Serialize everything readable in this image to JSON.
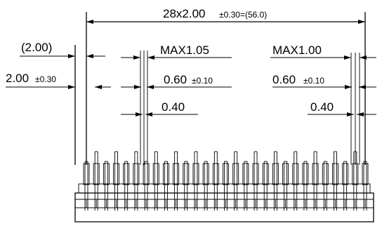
{
  "dimensions": {
    "overall": {
      "main": "28x2.00",
      "tol": "±0.30=(56.0)"
    },
    "ref_pitch": {
      "main": "(2.00)"
    },
    "pitch_tol": {
      "main": "2.00",
      "tol": "±0.30"
    },
    "max_left": {
      "main": "MAX1.05"
    },
    "max_right": {
      "main": "MAX1.00"
    },
    "width_left": {
      "main": "0.60",
      "tol": "±0.10"
    },
    "width_right": {
      "main": "0.60",
      "tol": "±0.10"
    },
    "thk_left": {
      "main": "0.40"
    },
    "thk_right": {
      "main": "0.40"
    }
  },
  "connector": {
    "pin_count": 29
  }
}
